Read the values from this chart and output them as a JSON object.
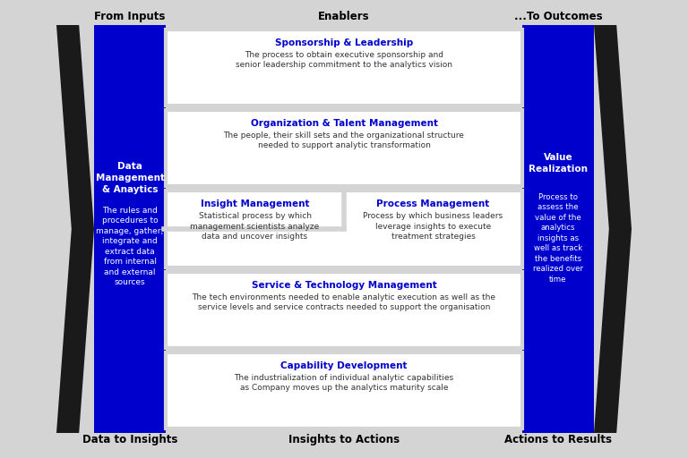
{
  "bg_color": "#d4d4d4",
  "blue_color": "#0000cc",
  "dark_color": "#1a1a1a",
  "white_color": "#ffffff",
  "text_color": "#333333",
  "header_top": "From Inputs",
  "header_mid": "Enablers",
  "header_right": "...To Outcomes",
  "footer_left": "Data to Insights",
  "footer_mid": "Insights to Actions",
  "footer_right": "Actions to Results",
  "left_box_title": "Data\nManagement\n& Anaytics",
  "left_box_body": "The rules and\nprocedures to\nmanage, gather,\nintegrate and\nextract data\nfrom internal\nand external\nsources",
  "right_box_title": "Value\nRealization",
  "right_box_body": "Process to\nassess the\nvalue of the\nanalytics\ninsights as\nwell as track\nthe benefits\nrealized over\ntime",
  "enablers": [
    {
      "title": "Sponsorship & Leadership",
      "body": "The process to obtain executive sponsorship and\nsenior leadership commitment to the analytics vision",
      "split": false
    },
    {
      "title": "Organization & Talent Management",
      "body": "The people, their skill sets and the organizational structure\nneeded to support analytic transformation",
      "split": false
    },
    {
      "title_left": "Insight Management",
      "body_left": "Statistical process by which\nmanagement scientists analyze\ndata and uncover insights",
      "title_right": "Process Management",
      "body_right": "Process by which business leaders\nleverage insights to execute\ntreatment strategies",
      "split": true
    },
    {
      "title": "Service & Technology Management",
      "body": "The tech environments needed to enable analytic execution as well as the\nservice levels and service contracts needed to support the organisation",
      "split": false
    },
    {
      "title": "Capability Development",
      "body": "The industrialization of individual analytic capabilities\nas Company moves up the analytics maturity scale",
      "split": false
    }
  ]
}
